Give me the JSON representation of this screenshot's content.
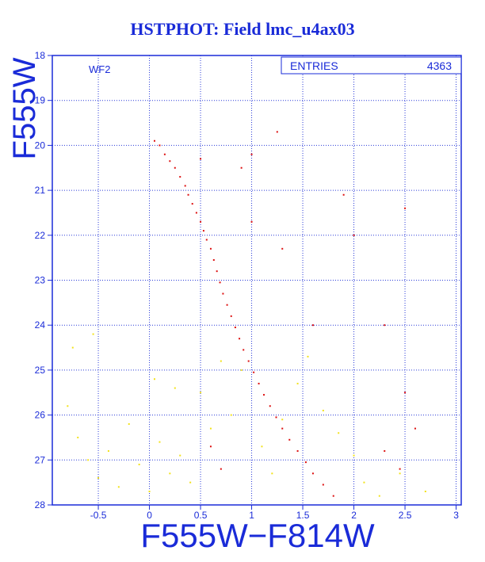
{
  "title": "HSTPHOT: Field lmc_u4ax03",
  "chart_data": {
    "type": "scatter",
    "title": "HSTPHOT: Field lmc_u4ax03",
    "xlabel": "F555W−F814W",
    "ylabel": "F555W",
    "xlim": [
      -0.95,
      3.05
    ],
    "ylim": [
      28,
      18
    ],
    "y_inverted": true,
    "grid": true,
    "panel_label": "WF2",
    "stats_box": {
      "label": "ENTRIES",
      "value": "4363"
    },
    "x_ticks": [
      -0.5,
      0,
      0.5,
      1,
      1.5,
      2,
      2.5,
      3
    ],
    "x_tick_labels": [
      "-0.5",
      "0",
      "0.5",
      "1",
      "1.5",
      "2",
      "2.5",
      "3"
    ],
    "y_ticks": [
      18,
      19,
      20,
      21,
      22,
      23,
      24,
      25,
      26,
      27,
      28
    ],
    "y_tick_labels": [
      "18",
      "19",
      "20",
      "21",
      "22",
      "23",
      "24",
      "25",
      "26",
      "27",
      "28"
    ],
    "series": [
      {
        "color": "#dd1010",
        "points": [
          [
            0.05,
            19.9
          ],
          [
            0.1,
            20.0
          ],
          [
            0.15,
            20.2
          ],
          [
            0.2,
            20.35
          ],
          [
            0.25,
            20.5
          ],
          [
            0.3,
            20.7
          ],
          [
            0.35,
            20.9
          ],
          [
            0.38,
            21.1
          ],
          [
            0.42,
            21.3
          ],
          [
            0.46,
            21.5
          ],
          [
            0.5,
            21.7
          ],
          [
            0.53,
            21.9
          ],
          [
            0.56,
            22.1
          ],
          [
            0.6,
            22.3
          ],
          [
            0.63,
            22.55
          ],
          [
            0.66,
            22.8
          ],
          [
            0.69,
            23.05
          ],
          [
            0.72,
            23.3
          ],
          [
            0.76,
            23.55
          ],
          [
            0.8,
            23.8
          ],
          [
            0.84,
            24.05
          ],
          [
            0.88,
            24.3
          ],
          [
            0.92,
            24.55
          ],
          [
            0.97,
            24.8
          ],
          [
            1.02,
            25.05
          ],
          [
            1.07,
            25.3
          ],
          [
            1.12,
            25.55
          ],
          [
            1.18,
            25.8
          ],
          [
            1.24,
            26.05
          ],
          [
            1.3,
            26.3
          ],
          [
            1.37,
            26.55
          ],
          [
            1.45,
            26.8
          ],
          [
            1.53,
            27.05
          ],
          [
            1.6,
            27.3
          ],
          [
            1.7,
            27.55
          ],
          [
            1.8,
            27.8
          ],
          [
            1.25,
            19.7
          ],
          [
            1.0,
            21.7
          ],
          [
            1.3,
            22.3
          ],
          [
            1.9,
            21.1
          ],
          [
            2.0,
            22.0
          ],
          [
            2.5,
            21.4
          ],
          [
            1.6,
            24.0
          ],
          [
            2.3,
            24.0
          ],
          [
            2.5,
            25.5
          ],
          [
            2.6,
            26.3
          ],
          [
            2.3,
            26.8
          ],
          [
            2.45,
            27.2
          ],
          [
            0.6,
            26.7
          ],
          [
            0.7,
            27.2
          ],
          [
            0.5,
            20.3
          ],
          [
            0.9,
            20.5
          ],
          [
            1.0,
            20.2
          ]
        ]
      },
      {
        "color": "#f2e21a",
        "points": [
          [
            -0.8,
            25.8
          ],
          [
            -0.7,
            26.5
          ],
          [
            -0.6,
            27.0
          ],
          [
            -0.5,
            27.4
          ],
          [
            -0.4,
            26.8
          ],
          [
            -0.3,
            27.6
          ],
          [
            -0.2,
            26.2
          ],
          [
            -0.1,
            27.1
          ],
          [
            0.0,
            27.7
          ],
          [
            0.1,
            26.6
          ],
          [
            0.2,
            27.3
          ],
          [
            0.3,
            26.9
          ],
          [
            0.4,
            27.5
          ],
          [
            0.5,
            25.5
          ],
          [
            0.6,
            26.3
          ],
          [
            0.7,
            24.8
          ],
          [
            0.8,
            26.0
          ],
          [
            0.9,
            25.0
          ],
          [
            1.1,
            26.7
          ],
          [
            1.2,
            27.3
          ],
          [
            1.3,
            26.1
          ],
          [
            1.45,
            25.3
          ],
          [
            1.55,
            24.7
          ],
          [
            1.7,
            25.9
          ],
          [
            1.85,
            26.4
          ],
          [
            2.0,
            26.9
          ],
          [
            2.1,
            27.5
          ],
          [
            2.25,
            27.8
          ],
          [
            2.45,
            27.3
          ],
          [
            2.7,
            27.7
          ],
          [
            -0.55,
            24.2
          ],
          [
            -0.75,
            24.5
          ],
          [
            0.05,
            25.2
          ],
          [
            0.25,
            25.4
          ]
        ]
      }
    ]
  }
}
